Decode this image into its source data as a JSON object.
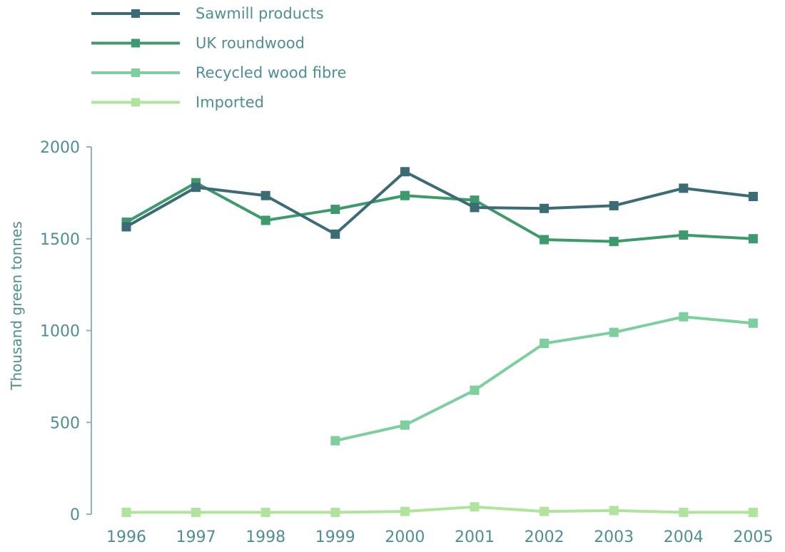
{
  "chart_data": {
    "type": "line",
    "title": "",
    "xlabel": "",
    "ylabel": "Thousand green tonnes",
    "x": [
      "1996",
      "1997",
      "1998",
      "1999",
      "2000",
      "2001",
      "2002",
      "2003",
      "2004",
      "2005"
    ],
    "ylim": [
      0,
      2000
    ],
    "yticks": [
      0,
      500,
      1000,
      1500,
      2000
    ],
    "grid": false,
    "legend_position": "top-left",
    "series": [
      {
        "name": "Sawmill products",
        "color": "#3b6b75",
        "values": [
          1565,
          1780,
          1735,
          1525,
          1865,
          1670,
          1665,
          1680,
          1775,
          1730
        ]
      },
      {
        "name": "UK roundwood",
        "color": "#3d9a6c",
        "values": [
          1590,
          1805,
          1600,
          1660,
          1735,
          1710,
          1495,
          1485,
          1520,
          1500
        ]
      },
      {
        "name": "Recycled wood fibre",
        "color": "#7dcf9d",
        "values": [
          null,
          null,
          null,
          400,
          485,
          675,
          930,
          990,
          1075,
          1040
        ]
      },
      {
        "name": "Imported",
        "color": "#b0e39c",
        "values": [
          10,
          10,
          10,
          10,
          15,
          40,
          15,
          20,
          10,
          10
        ]
      }
    ],
    "axis_color": "#8fb3b8",
    "text_color": "#4e8e94"
  }
}
